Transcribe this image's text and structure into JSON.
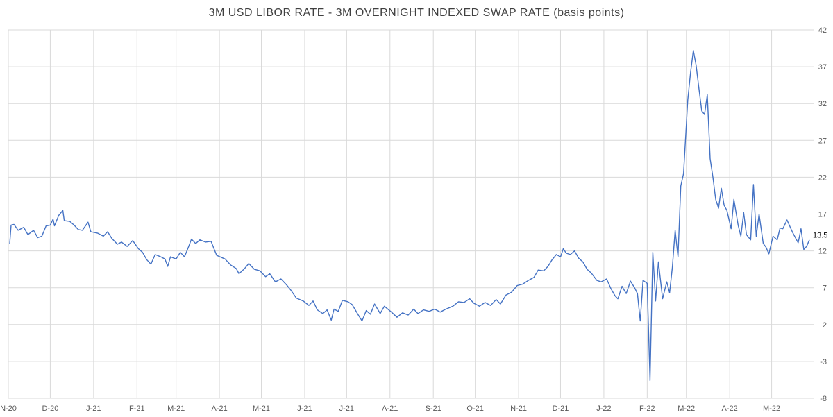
{
  "chart_data": {
    "type": "line",
    "title": "3M USD LIBOR RATE - 3M OVERNIGHT INDEXED SWAP RATE (basis points)",
    "xlabel": "",
    "ylabel": "",
    "ylim": [
      -8,
      42
    ],
    "yticks": [
      42,
      37,
      32,
      27,
      22,
      17,
      12,
      7,
      2,
      -3,
      -8
    ],
    "xlim": [
      "2020-11-01",
      "2022-05-31"
    ],
    "grid": true,
    "legend": "none",
    "line_color": "#4472c4",
    "xticks": [
      {
        "label": "N-20",
        "date": "2020-11-01"
      },
      {
        "label": "D-20",
        "date": "2020-12-01"
      },
      {
        "label": "J-21",
        "date": "2021-01-01"
      },
      {
        "label": "F-21",
        "date": "2021-02-01"
      },
      {
        "label": "M-21",
        "date": "2021-03-01"
      },
      {
        "label": "A-21",
        "date": "2021-04-01"
      },
      {
        "label": "M-21",
        "date": "2021-05-01"
      },
      {
        "label": "J-21",
        "date": "2021-06-01"
      },
      {
        "label": "J-21",
        "date": "2021-07-01"
      },
      {
        "label": "A-21",
        "date": "2021-08-01"
      },
      {
        "label": "S-21",
        "date": "2021-09-01"
      },
      {
        "label": "O-21",
        "date": "2021-10-01"
      },
      {
        "label": "N-21",
        "date": "2021-11-01"
      },
      {
        "label": "D-21",
        "date": "2021-12-01"
      },
      {
        "label": "J-22",
        "date": "2022-01-01"
      },
      {
        "label": "F-22",
        "date": "2022-02-01"
      },
      {
        "label": "M-22",
        "date": "2022-03-01"
      },
      {
        "label": "A-22",
        "date": "2022-04-01"
      },
      {
        "label": "M-22",
        "date": "2022-05-01"
      }
    ],
    "last_value_label": "13.5",
    "series": [
      {
        "points": [
          [
            "2020-11-02",
            13.0
          ],
          [
            "2020-11-03",
            15.5
          ],
          [
            "2020-11-05",
            15.6
          ],
          [
            "2020-11-08",
            14.8
          ],
          [
            "2020-11-12",
            15.2
          ],
          [
            "2020-11-15",
            14.2
          ],
          [
            "2020-11-19",
            14.8
          ],
          [
            "2020-11-22",
            13.8
          ],
          [
            "2020-11-25",
            14.0
          ],
          [
            "2020-11-28",
            15.4
          ],
          [
            "2020-12-01",
            15.5
          ],
          [
            "2020-12-03",
            16.3
          ],
          [
            "2020-12-04",
            15.4
          ],
          [
            "2020-12-07",
            16.8
          ],
          [
            "2020-12-10",
            17.5
          ],
          [
            "2020-12-11",
            16.1
          ],
          [
            "2020-12-15",
            16.0
          ],
          [
            "2020-12-18",
            15.5
          ],
          [
            "2020-12-21",
            14.9
          ],
          [
            "2020-12-24",
            14.8
          ],
          [
            "2020-12-28",
            15.9
          ],
          [
            "2020-12-30",
            14.6
          ],
          [
            "2021-01-04",
            14.4
          ],
          [
            "2021-01-08",
            14.0
          ],
          [
            "2021-01-11",
            14.6
          ],
          [
            "2021-01-14",
            13.7
          ],
          [
            "2021-01-18",
            12.9
          ],
          [
            "2021-01-21",
            13.2
          ],
          [
            "2021-01-25",
            12.6
          ],
          [
            "2021-01-29",
            13.4
          ],
          [
            "2021-02-02",
            12.3
          ],
          [
            "2021-02-05",
            11.8
          ],
          [
            "2021-02-08",
            10.8
          ],
          [
            "2021-02-11",
            10.2
          ],
          [
            "2021-02-14",
            11.5
          ],
          [
            "2021-02-18",
            11.2
          ],
          [
            "2021-02-21",
            10.9
          ],
          [
            "2021-02-23",
            9.9
          ],
          [
            "2021-02-25",
            11.2
          ],
          [
            "2021-03-01",
            10.9
          ],
          [
            "2021-03-04",
            11.8
          ],
          [
            "2021-03-07",
            11.2
          ],
          [
            "2021-03-10",
            12.6
          ],
          [
            "2021-03-12",
            13.6
          ],
          [
            "2021-03-15",
            13.0
          ],
          [
            "2021-03-18",
            13.5
          ],
          [
            "2021-03-22",
            13.2
          ],
          [
            "2021-03-26",
            13.3
          ],
          [
            "2021-03-30",
            11.4
          ],
          [
            "2021-04-05",
            10.9
          ],
          [
            "2021-04-09",
            10.1
          ],
          [
            "2021-04-13",
            9.6
          ],
          [
            "2021-04-15",
            8.9
          ],
          [
            "2021-04-19",
            9.6
          ],
          [
            "2021-04-22",
            10.3
          ],
          [
            "2021-04-26",
            9.5
          ],
          [
            "2021-04-30",
            9.3
          ],
          [
            "2021-05-04",
            8.5
          ],
          [
            "2021-05-07",
            8.9
          ],
          [
            "2021-05-11",
            7.8
          ],
          [
            "2021-05-15",
            8.2
          ],
          [
            "2021-05-19",
            7.4
          ],
          [
            "2021-05-22",
            6.7
          ],
          [
            "2021-05-26",
            5.6
          ],
          [
            "2021-05-31",
            5.2
          ],
          [
            "2021-06-04",
            4.6
          ],
          [
            "2021-06-07",
            5.2
          ],
          [
            "2021-06-10",
            4.0
          ],
          [
            "2021-06-14",
            3.5
          ],
          [
            "2021-06-17",
            4.0
          ],
          [
            "2021-06-20",
            2.6
          ],
          [
            "2021-06-22",
            4.1
          ],
          [
            "2021-06-25",
            3.8
          ],
          [
            "2021-06-28",
            5.3
          ],
          [
            "2021-07-02",
            5.1
          ],
          [
            "2021-07-05",
            4.7
          ],
          [
            "2021-07-09",
            3.4
          ],
          [
            "2021-07-12",
            2.5
          ],
          [
            "2021-07-15",
            3.9
          ],
          [
            "2021-07-18",
            3.4
          ],
          [
            "2021-07-21",
            4.8
          ],
          [
            "2021-07-25",
            3.5
          ],
          [
            "2021-07-28",
            4.5
          ],
          [
            "2021-08-02",
            3.7
          ],
          [
            "2021-08-06",
            3.0
          ],
          [
            "2021-08-10",
            3.6
          ],
          [
            "2021-08-14",
            3.3
          ],
          [
            "2021-08-18",
            4.1
          ],
          [
            "2021-08-21",
            3.5
          ],
          [
            "2021-08-25",
            4.0
          ],
          [
            "2021-08-29",
            3.8
          ],
          [
            "2021-09-02",
            4.1
          ],
          [
            "2021-09-06",
            3.7
          ],
          [
            "2021-09-10",
            4.1
          ],
          [
            "2021-09-15",
            4.5
          ],
          [
            "2021-09-19",
            5.1
          ],
          [
            "2021-09-23",
            5.0
          ],
          [
            "2021-09-27",
            5.5
          ],
          [
            "2021-09-30",
            4.9
          ],
          [
            "2021-10-04",
            4.5
          ],
          [
            "2021-10-08",
            5.0
          ],
          [
            "2021-10-12",
            4.6
          ],
          [
            "2021-10-16",
            5.4
          ],
          [
            "2021-10-19",
            4.8
          ],
          [
            "2021-10-23",
            6.0
          ],
          [
            "2021-10-27",
            6.4
          ],
          [
            "2021-10-31",
            7.3
          ],
          [
            "2021-11-04",
            7.5
          ],
          [
            "2021-11-08",
            8.0
          ],
          [
            "2021-11-12",
            8.4
          ],
          [
            "2021-11-15",
            9.4
          ],
          [
            "2021-11-19",
            9.3
          ],
          [
            "2021-11-22",
            9.9
          ],
          [
            "2021-11-25",
            10.8
          ],
          [
            "2021-11-28",
            11.5
          ],
          [
            "2021-12-01",
            11.2
          ],
          [
            "2021-12-03",
            12.3
          ],
          [
            "2021-12-05",
            11.7
          ],
          [
            "2021-12-08",
            11.5
          ],
          [
            "2021-12-11",
            12.0
          ],
          [
            "2021-12-14",
            11.0
          ],
          [
            "2021-12-17",
            10.5
          ],
          [
            "2021-12-20",
            9.5
          ],
          [
            "2021-12-23",
            9.0
          ],
          [
            "2021-12-27",
            8.0
          ],
          [
            "2021-12-30",
            7.8
          ],
          [
            "2022-01-03",
            8.2
          ],
          [
            "2022-01-06",
            6.9
          ],
          [
            "2022-01-09",
            5.9
          ],
          [
            "2022-01-11",
            5.5
          ],
          [
            "2022-01-14",
            7.2
          ],
          [
            "2022-01-17",
            6.2
          ],
          [
            "2022-01-20",
            7.9
          ],
          [
            "2022-01-23",
            7.0
          ],
          [
            "2022-01-25",
            6.2
          ],
          [
            "2022-01-27",
            2.5
          ],
          [
            "2022-01-29",
            8.0
          ],
          [
            "2022-02-01",
            7.6
          ],
          [
            "2022-02-03",
            -5.6
          ],
          [
            "2022-02-05",
            11.8
          ],
          [
            "2022-02-07",
            5.2
          ],
          [
            "2022-02-09",
            10.5
          ],
          [
            "2022-02-12",
            5.5
          ],
          [
            "2022-02-15",
            7.8
          ],
          [
            "2022-02-17",
            6.3
          ],
          [
            "2022-02-19",
            9.8
          ],
          [
            "2022-02-21",
            14.8
          ],
          [
            "2022-02-23",
            11.2
          ],
          [
            "2022-02-25",
            20.8
          ],
          [
            "2022-02-27",
            22.5
          ],
          [
            "2022-02-28",
            25.8
          ],
          [
            "2022-03-02",
            32.5
          ],
          [
            "2022-03-04",
            36.2
          ],
          [
            "2022-03-06",
            39.2
          ],
          [
            "2022-03-08",
            37.2
          ],
          [
            "2022-03-10",
            34.0
          ],
          [
            "2022-03-12",
            31.0
          ],
          [
            "2022-03-14",
            30.5
          ],
          [
            "2022-03-16",
            33.2
          ],
          [
            "2022-03-18",
            24.5
          ],
          [
            "2022-03-20",
            22.0
          ],
          [
            "2022-03-22",
            19.0
          ],
          [
            "2022-03-24",
            17.8
          ],
          [
            "2022-03-26",
            20.5
          ],
          [
            "2022-03-28",
            18.2
          ],
          [
            "2022-03-30",
            17.5
          ],
          [
            "2022-04-02",
            15.0
          ],
          [
            "2022-04-04",
            19.0
          ],
          [
            "2022-04-07",
            15.5
          ],
          [
            "2022-04-09",
            14.0
          ],
          [
            "2022-04-11",
            17.2
          ],
          [
            "2022-04-13",
            14.2
          ],
          [
            "2022-04-16",
            13.5
          ],
          [
            "2022-04-18",
            21.0
          ],
          [
            "2022-04-20",
            14.0
          ],
          [
            "2022-04-22",
            17.0
          ],
          [
            "2022-04-25",
            13.0
          ],
          [
            "2022-04-27",
            12.5
          ],
          [
            "2022-04-29",
            11.6
          ],
          [
            "2022-05-02",
            14.0
          ],
          [
            "2022-05-05",
            13.5
          ],
          [
            "2022-05-07",
            15.1
          ],
          [
            "2022-05-09",
            15.0
          ],
          [
            "2022-05-12",
            16.2
          ],
          [
            "2022-05-16",
            14.5
          ],
          [
            "2022-05-20",
            13.1
          ],
          [
            "2022-05-22",
            15.0
          ],
          [
            "2022-05-24",
            12.2
          ],
          [
            "2022-05-26",
            12.6
          ],
          [
            "2022-05-28",
            13.5
          ]
        ]
      }
    ]
  }
}
